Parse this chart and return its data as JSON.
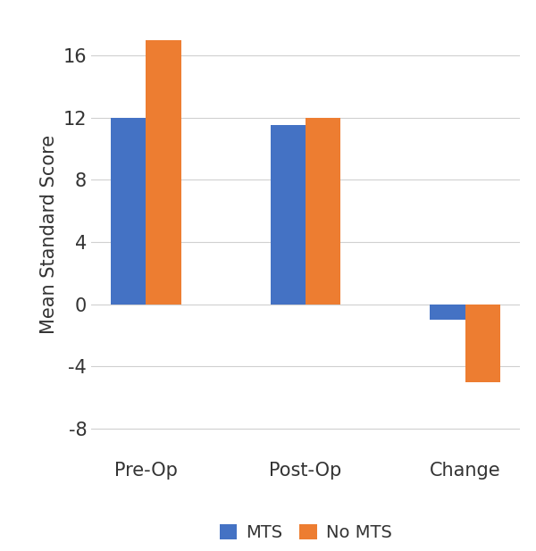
{
  "categories": [
    "Pre-Op",
    "Post-Op",
    "Change"
  ],
  "mts_values": [
    12,
    11.5,
    -1
  ],
  "no_mts_values": [
    17,
    12,
    -5
  ],
  "mts_color": "#4472C4",
  "no_mts_color": "#ED7D31",
  "ylabel": "Mean Standard Score",
  "yticks": [
    -8,
    -4,
    0,
    4,
    8,
    12,
    16
  ],
  "ylim": [
    -9.5,
    18.5
  ],
  "legend_labels": [
    "MTS",
    "No MTS"
  ],
  "bar_width": 0.22,
  "background_color": "#ffffff",
  "grid_color": "#d0d0d0",
  "ylabel_fontsize": 15,
  "tick_fontsize": 15,
  "legend_fontsize": 14
}
